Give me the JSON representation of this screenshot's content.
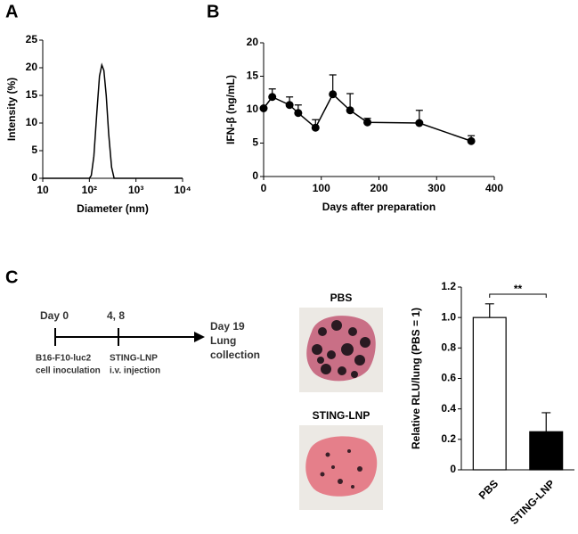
{
  "chart_data": [
    {
      "type": "line",
      "panel_label": "A",
      "xlabel": "Diameter (nm)",
      "ylabel": "Intensity (%)",
      "xscale": "log",
      "x": [
        10,
        100,
        110,
        125,
        145,
        165,
        185,
        205,
        230,
        260,
        300,
        340,
        10000
      ],
      "values": [
        0,
        0,
        0.5,
        4,
        12,
        18.5,
        20.5,
        19.5,
        15,
        8,
        2,
        0,
        0
      ],
      "color": "#000000",
      "xlim": [
        10,
        10000
      ],
      "xticks": [
        10,
        {
          "value": 100,
          "label": "10²"
        },
        {
          "value": 1000,
          "label": "10³"
        },
        {
          "value": 10000,
          "label": "10⁴"
        }
      ],
      "ylim": [
        0,
        25
      ],
      "yticks": [
        0,
        5,
        10,
        15,
        20,
        25
      ]
    },
    {
      "type": "line",
      "panel_label": "B",
      "xlabel": "Days after preparation",
      "ylabel": "IFN-β (ng/mL)",
      "x": [
        0,
        15,
        45,
        60,
        90,
        120,
        150,
        180,
        270,
        360
      ],
      "values": [
        10.2,
        11.9,
        10.7,
        9.5,
        7.3,
        12.3,
        9.9,
        8.1,
        8.0,
        5.3
      ],
      "errors": [
        null,
        1.2,
        1.2,
        1.2,
        1.2,
        2.9,
        2.5,
        0.6,
        1.9,
        0.8
      ],
      "color": "#000000",
      "xlim": [
        0,
        400
      ],
      "xticks": [
        0,
        100,
        200,
        300,
        400
      ],
      "ylim": [
        0,
        20
      ],
      "yticks": [
        0,
        5,
        10,
        15,
        20
      ]
    },
    {
      "type": "bar",
      "panel_label": "C",
      "ylabel": "Relative RLU/lung (PBS = 1)",
      "categories": [
        "PBS",
        "STING-LNP"
      ],
      "values": [
        1.0,
        0.25
      ],
      "errors": [
        0.09,
        0.125
      ],
      "colors": [
        "#ffffff",
        "#000000"
      ],
      "significance": "**",
      "ylim": [
        0,
        1.2
      ],
      "yticks": [
        0,
        0.2,
        0.4,
        0.6,
        0.8,
        {
          "value": 1,
          "label": "1.0"
        },
        1.2
      ]
    }
  ],
  "timeline": {
    "start": "Day 0",
    "dose_days": "4, 8",
    "end": "Day 19",
    "end_event": [
      "Lung",
      "collection"
    ],
    "start_event": [
      "B16-F10-luc2",
      "cell inoculation"
    ],
    "dose_event": [
      "STING-LNP",
      "i.v. injection"
    ]
  },
  "photos": [
    "PBS",
    "STING-LNP"
  ]
}
